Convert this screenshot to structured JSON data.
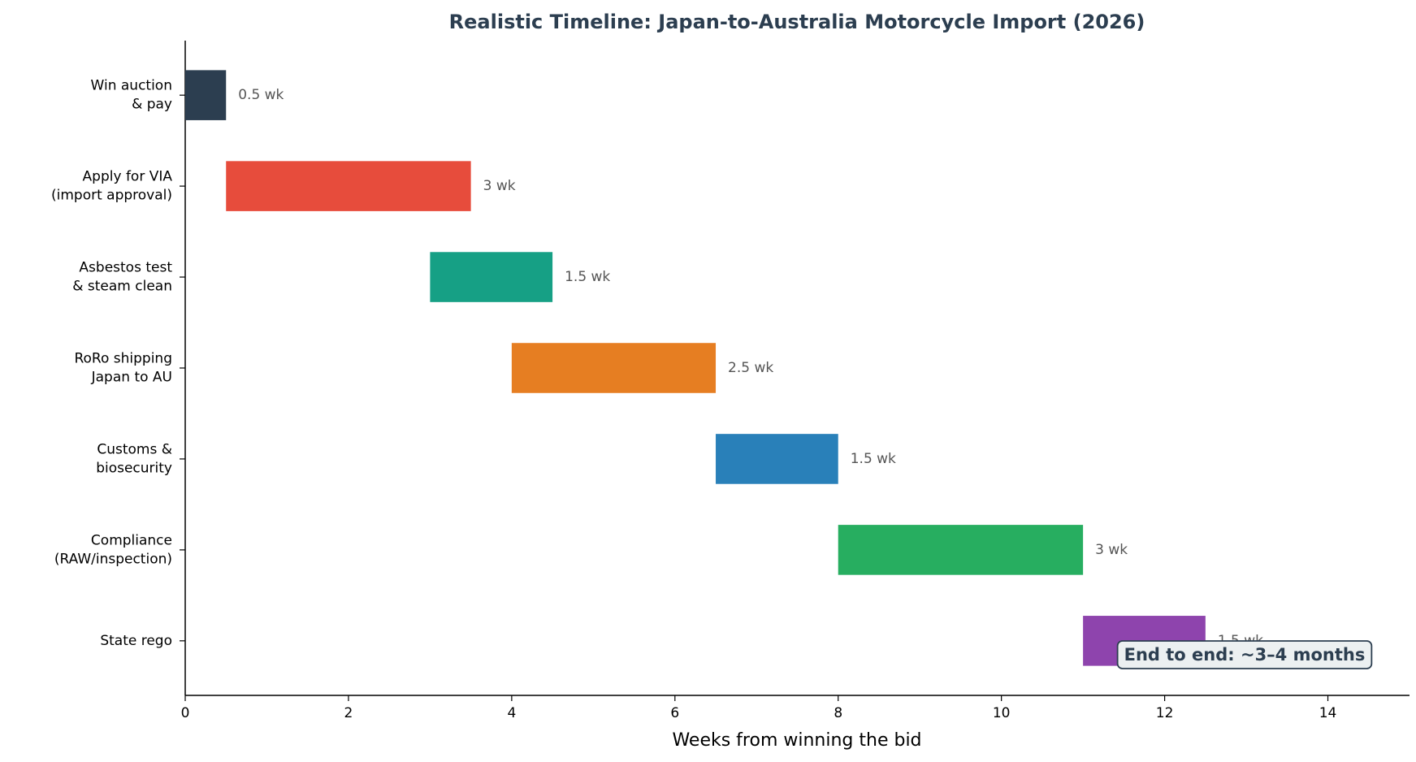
{
  "chart_data": {
    "type": "gantt",
    "title": "Realistic Timeline: Japan-to-Australia Motorcycle Import (2026)",
    "x_label": "Weeks from winning the bid",
    "categories": [
      [
        "Win auction",
        "& pay"
      ],
      [
        "Apply for VIA",
        "(import approval)"
      ],
      [
        "Asbestos test",
        "& steam clean"
      ],
      [
        "RoRo shipping",
        "Japan to AU"
      ],
      [
        "Customs &",
        "biosecurity"
      ],
      [
        "Compliance",
        "(RAW/inspection)"
      ],
      [
        "State rego"
      ]
    ],
    "starts": [
      0,
      0.5,
      3,
      4,
      6.5,
      8,
      11
    ],
    "values": [
      0.5,
      3,
      1.5,
      2.5,
      1.5,
      3,
      1.5
    ],
    "value_labels": [
      "0.5 wk",
      "3 wk",
      "1.5 wk",
      "2.5 wk",
      "1.5 wk",
      "3 wk",
      "1.5 wk"
    ],
    "colors": [
      "#2c3e50",
      "#e74c3c",
      "#16a085",
      "#e67e22",
      "#2980b9",
      "#27ae60",
      "#8e44ad"
    ],
    "xlim": [
      0,
      15
    ],
    "xticks": [
      0,
      2,
      4,
      6,
      8,
      10,
      12,
      14
    ],
    "annotation": "End to end: ~3–4 months"
  }
}
